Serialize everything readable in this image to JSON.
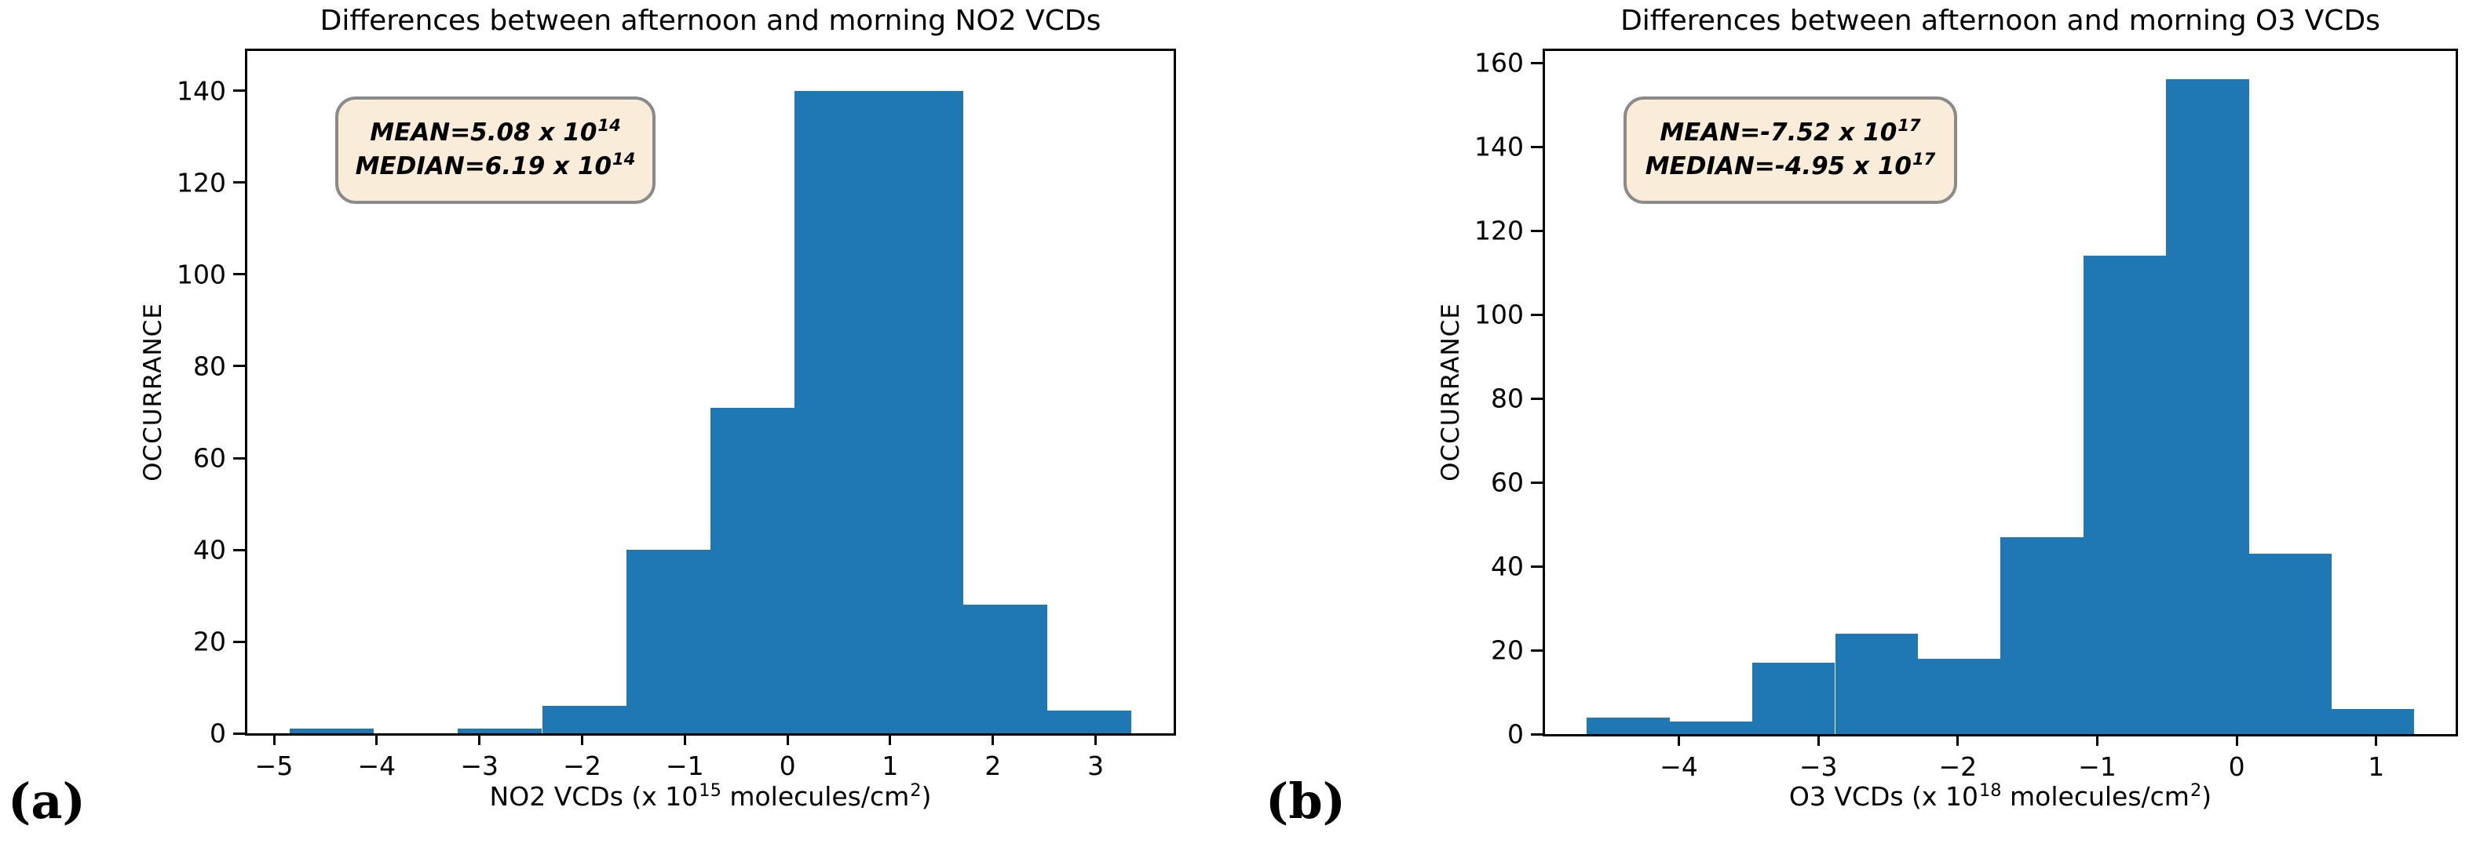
{
  "figure": {
    "background": "#ffffff",
    "panel_a_label": "(a)",
    "panel_b_label": "(b)",
    "bar_color": "#1f77b4",
    "annotation_box": {
      "background": "#f9ecd9",
      "border_color": "#8a8a8a"
    }
  },
  "chart_data": [
    {
      "type": "bar",
      "subtype": "histogram",
      "panel": "a",
      "title": "Differences between afternoon and morning NO2 VCDs",
      "ylabel": "OCCURRANCE",
      "xlabel_text": "NO2 VCDs (x 10^15 molecules/cm^2)",
      "xlabel_parts": {
        "pre": "NO2 VCDs (x 10",
        "sup1": "15",
        "mid": " molecules/cm",
        "sup2": "2",
        "post": ")"
      },
      "annotation": {
        "mean_pre": "MEAN=5.08 x 10",
        "mean_sup": "14",
        "median_pre": "MEDIAN=6.19 x 10",
        "median_sup": "14"
      },
      "bin_edges": [
        -4.85,
        -4.03,
        -3.21,
        -2.39,
        -1.57,
        -0.75,
        0.07,
        0.89,
        1.71,
        2.53,
        3.35
      ],
      "counts": [
        1,
        0,
        1,
        6,
        40,
        71,
        140,
        140,
        28,
        5
      ],
      "xlim": [
        -5.26,
        3.76
      ],
      "ylim": [
        0,
        148.7
      ],
      "grid": false,
      "legend": null,
      "xticks": [
        {
          "v": -5,
          "label": "−5"
        },
        {
          "v": -4,
          "label": "−4"
        },
        {
          "v": -3,
          "label": "−3"
        },
        {
          "v": -2,
          "label": "−2"
        },
        {
          "v": -1,
          "label": "−1"
        },
        {
          "v": 0,
          "label": "0"
        },
        {
          "v": 1,
          "label": "1"
        },
        {
          "v": 2,
          "label": "2"
        },
        {
          "v": 3,
          "label": "3"
        }
      ],
      "yticks": [
        {
          "v": 0,
          "label": "0"
        },
        {
          "v": 20,
          "label": "20"
        },
        {
          "v": 40,
          "label": "40"
        },
        {
          "v": 60,
          "label": "60"
        },
        {
          "v": 80,
          "label": "80"
        },
        {
          "v": 100,
          "label": "100"
        },
        {
          "v": 120,
          "label": "120"
        },
        {
          "v": 140,
          "label": "140"
        }
      ]
    },
    {
      "type": "bar",
      "subtype": "histogram",
      "panel": "b",
      "title": "Differences between afternoon and morning O3 VCDs",
      "ylabel": "OCCURRANCE",
      "xlabel_text": "O3 VCDs (x 10^18 molecules/cm^2)",
      "xlabel_parts": {
        "pre": "O3 VCDs (x 10",
        "sup1": "18",
        "mid": " molecules/cm",
        "sup2": "2",
        "post": ")"
      },
      "annotation": {
        "mean_pre": "MEAN=-7.52 x 10",
        "mean_sup": "17",
        "median_pre": "MEDIAN=-4.95 x 10",
        "median_sup": "17"
      },
      "bin_edges": [
        -4.66,
        -4.067,
        -3.473,
        -2.88,
        -2.287,
        -1.693,
        -1.1,
        -0.507,
        0.087,
        0.68,
        1.273
      ],
      "counts": [
        4,
        3,
        17,
        24,
        18,
        47,
        114,
        156,
        43,
        6
      ],
      "xlim": [
        -4.96,
        1.57
      ],
      "ylim": [
        0,
        162.8
      ],
      "grid": false,
      "legend": null,
      "xticks": [
        {
          "v": -4,
          "label": "−4"
        },
        {
          "v": -3,
          "label": "−3"
        },
        {
          "v": -2,
          "label": "−2"
        },
        {
          "v": -1,
          "label": "−1"
        },
        {
          "v": 0,
          "label": "0"
        },
        {
          "v": 1,
          "label": "1"
        }
      ],
      "yticks": [
        {
          "v": 0,
          "label": "0"
        },
        {
          "v": 20,
          "label": "20"
        },
        {
          "v": 40,
          "label": "40"
        },
        {
          "v": 60,
          "label": "60"
        },
        {
          "v": 80,
          "label": "80"
        },
        {
          "v": 100,
          "label": "100"
        },
        {
          "v": 120,
          "label": "120"
        },
        {
          "v": 140,
          "label": "140"
        },
        {
          "v": 160,
          "label": "160"
        }
      ]
    }
  ]
}
